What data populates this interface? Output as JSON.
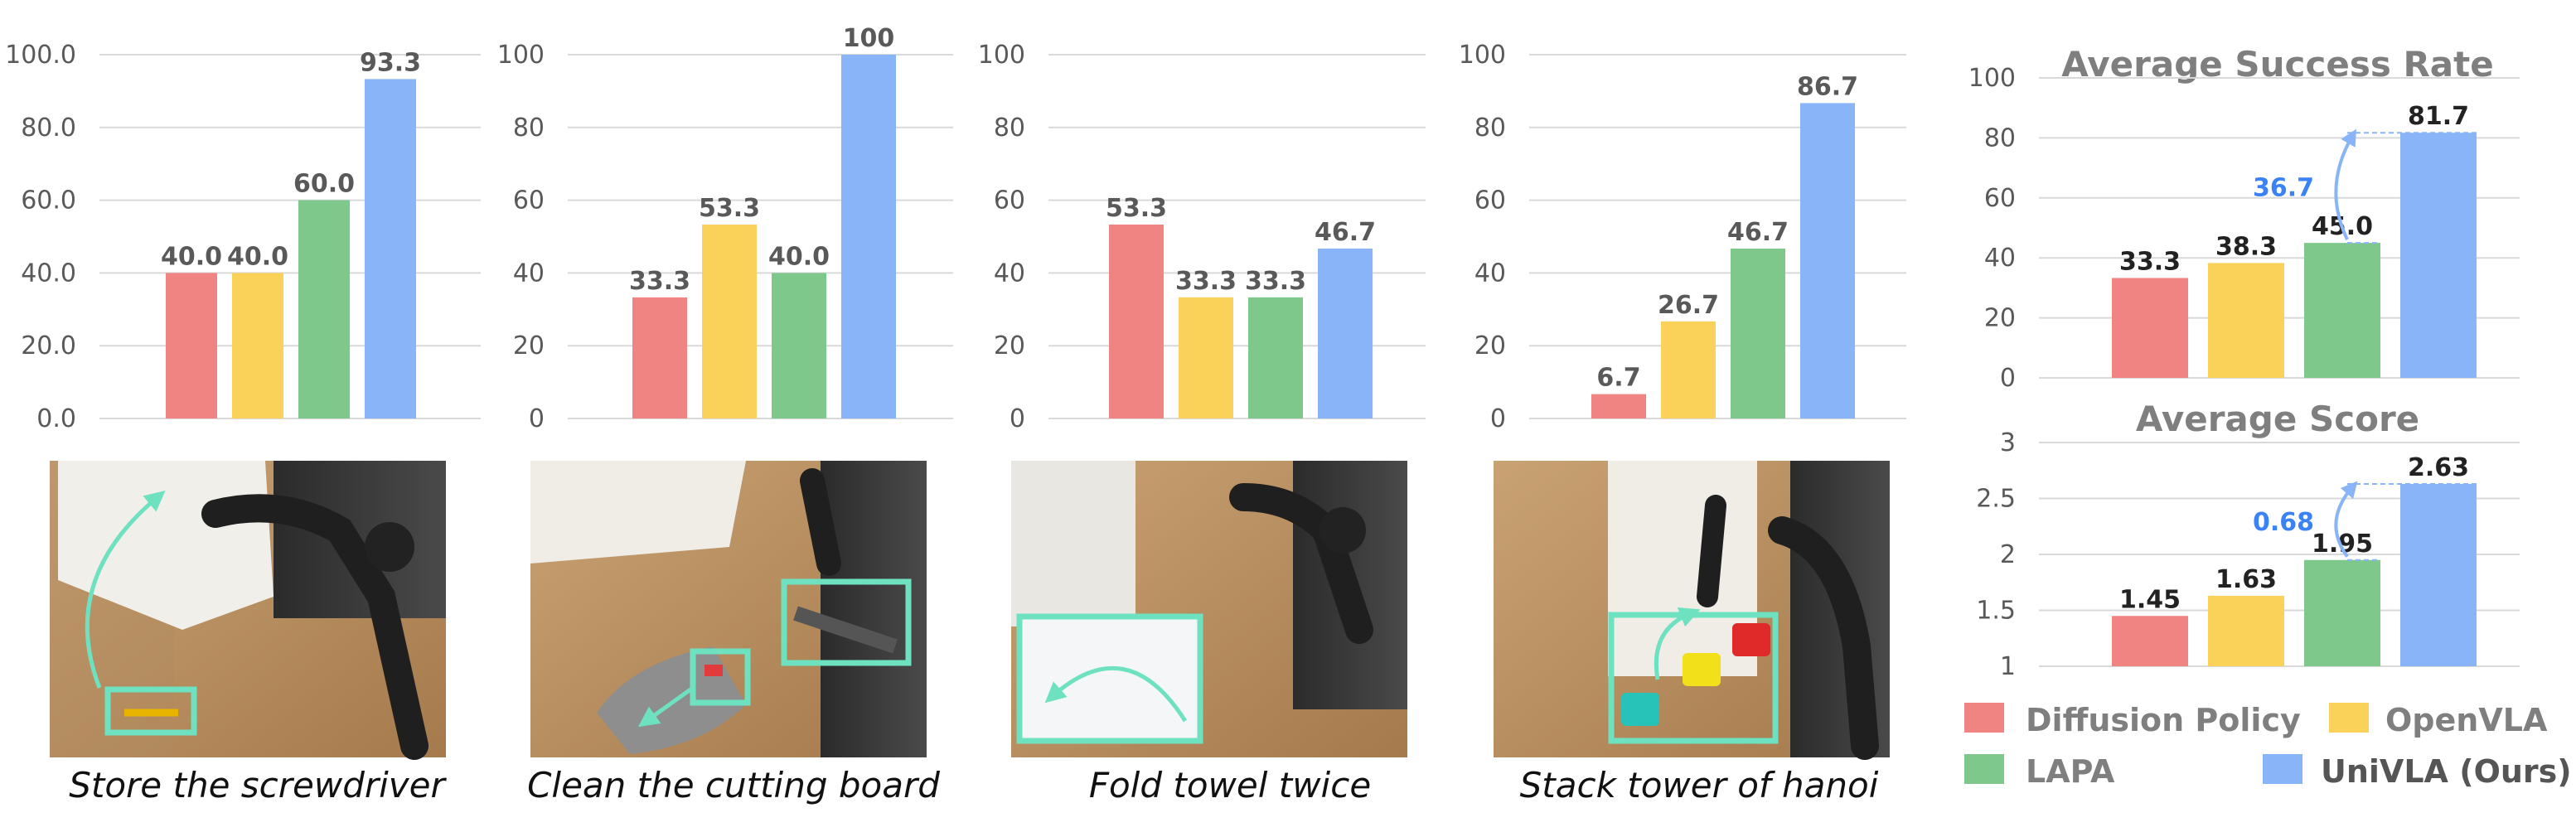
{
  "colors": {
    "diffusion_policy": "#F08482",
    "openvla": "#FAD25A",
    "lapa": "#7EC88C",
    "univla": "#8AB4F8",
    "grid": "#d9d9d9",
    "accent": "#3b82f6",
    "highlight": "#6ee2c0"
  },
  "legend": [
    {
      "label": "Diffusion Policy",
      "color": "#F08482"
    },
    {
      "label": "OpenVLA",
      "color": "#FAD25A"
    },
    {
      "label": "LAPA",
      "color": "#7EC88C"
    },
    {
      "label": "UniVLA (Ours)",
      "color": "#8AB4F8"
    }
  ],
  "chart_data": [
    {
      "type": "bar",
      "title": "",
      "caption": "Store the screwdriver",
      "categories": [
        "Diffusion Policy",
        "OpenVLA",
        "LAPA",
        "UniVLA (Ours)"
      ],
      "values": [
        40.0,
        40.0,
        60.0,
        93.3
      ],
      "value_labels": [
        "40.0",
        "40.0",
        "60.0",
        "93.3"
      ],
      "ylim": [
        0,
        100
      ],
      "yticks": [
        "0.0",
        "20.0",
        "40.0",
        "60.0",
        "80.0",
        "100.0"
      ]
    },
    {
      "type": "bar",
      "title": "",
      "caption": "Clean the cutting board",
      "categories": [
        "Diffusion Policy",
        "OpenVLA",
        "LAPA",
        "UniVLA (Ours)"
      ],
      "values": [
        33.3,
        53.3,
        40.0,
        100
      ],
      "value_labels": [
        "33.3",
        "53.3",
        "40.0",
        "100"
      ],
      "ylim": [
        0,
        100
      ],
      "yticks": [
        "0",
        "20",
        "40",
        "60",
        "80",
        "100"
      ]
    },
    {
      "type": "bar",
      "title": "",
      "caption": "Fold towel twice",
      "categories": [
        "Diffusion Policy",
        "OpenVLA",
        "LAPA",
        "UniVLA (Ours)"
      ],
      "values": [
        53.3,
        33.3,
        33.3,
        46.7
      ],
      "value_labels": [
        "53.3",
        "33.3",
        "33.3",
        "46.7"
      ],
      "ylim": [
        0,
        100
      ],
      "yticks": [
        "0",
        "20",
        "40",
        "60",
        "80",
        "100"
      ]
    },
    {
      "type": "bar",
      "title": "",
      "caption": "Stack tower of hanoi",
      "categories": [
        "Diffusion Policy",
        "OpenVLA",
        "LAPA",
        "UniVLA (Ours)"
      ],
      "values": [
        6.7,
        26.7,
        46.7,
        86.7
      ],
      "value_labels": [
        "6.7",
        "26.7",
        "46.7",
        "86.7"
      ],
      "ylim": [
        0,
        100
      ],
      "yticks": [
        "0",
        "20",
        "40",
        "60",
        "80",
        "100"
      ]
    },
    {
      "type": "bar",
      "title": "Average Success Rate",
      "caption": "",
      "categories": [
        "Diffusion Policy",
        "OpenVLA",
        "LAPA",
        "UniVLA (Ours)"
      ],
      "values": [
        33.3,
        38.3,
        45.0,
        81.7
      ],
      "value_labels": [
        "33.3",
        "38.3",
        "45.0",
        "81.7"
      ],
      "ylim": [
        0,
        100
      ],
      "yticks": [
        "0",
        "20",
        "40",
        "60",
        "80",
        "100"
      ],
      "improvement": "36.7"
    },
    {
      "type": "bar",
      "title": "Average Score",
      "caption": "",
      "categories": [
        "Diffusion Policy",
        "OpenVLA",
        "LAPA",
        "UniVLA (Ours)"
      ],
      "values": [
        1.45,
        1.63,
        1.95,
        2.63
      ],
      "value_labels": [
        "1.45",
        "1.63",
        "1.95",
        "2.63"
      ],
      "ylim": [
        1,
        3
      ],
      "yticks": [
        "1",
        "1.5",
        "2",
        "2.5",
        "3"
      ],
      "improvement": "0.68"
    }
  ]
}
